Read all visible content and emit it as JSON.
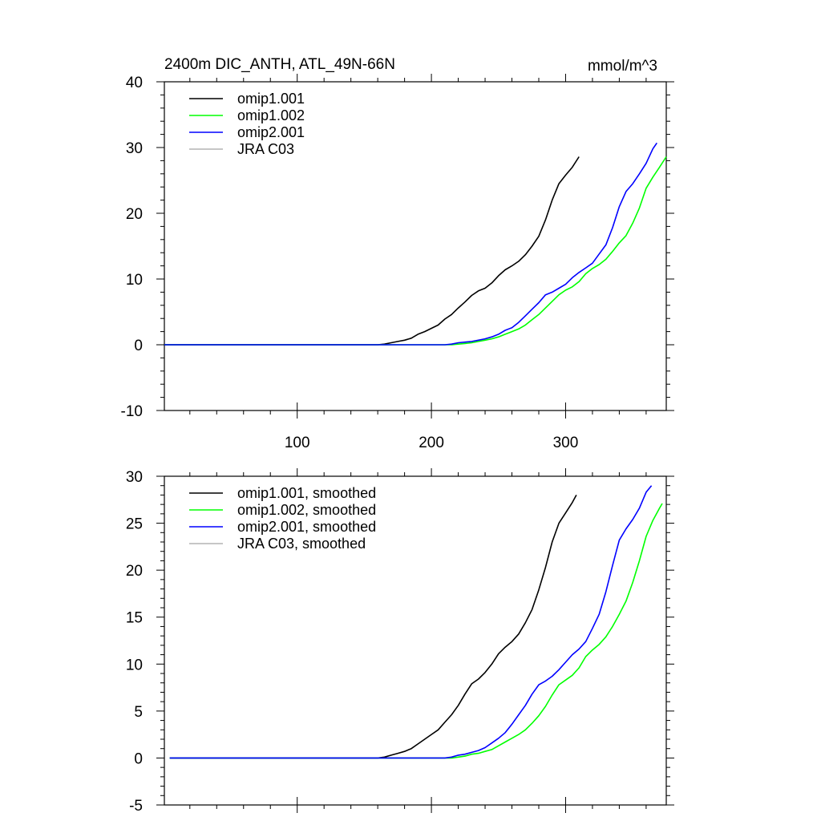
{
  "chart_data": [
    {
      "type": "line",
      "title": "2400m DIC_ANTH, ATL_49N-66N",
      "units": "mmol/m^3",
      "xlim": [
        1,
        375
      ],
      "ylim": [
        -10,
        40
      ],
      "xticks": [
        100,
        200,
        300
      ],
      "xtick_labels": [
        "100",
        "200",
        "300"
      ],
      "yticks": [
        -10,
        0,
        10,
        20,
        30,
        40
      ],
      "ytick_labels": [
        "-10",
        "0",
        "10",
        "20",
        "30",
        "40"
      ],
      "legend_position": "top-left",
      "grid": false,
      "series": [
        {
          "name": "omip1.001",
          "color": "#000000",
          "x": [
            1,
            160,
            165,
            170,
            175,
            180,
            185,
            190,
            195,
            200,
            205,
            210,
            215,
            220,
            225,
            230,
            235,
            240,
            245,
            250,
            255,
            260,
            265,
            270,
            275,
            280,
            285,
            290,
            295,
            300,
            305,
            310
          ],
          "y": [
            0,
            0,
            0.1,
            0.3,
            0.5,
            0.7,
            1.0,
            1.6,
            2.0,
            2.5,
            3.0,
            3.9,
            4.6,
            5.6,
            6.5,
            7.5,
            8.2,
            8.6,
            9.4,
            10.5,
            11.4,
            12.0,
            12.7,
            13.7,
            15.0,
            16.5,
            19.0,
            22.0,
            24.5,
            25.8,
            27.0,
            28.6
          ]
        },
        {
          "name": "omip1.002",
          "color": "#00ff00",
          "x": [
            1,
            210,
            215,
            220,
            225,
            230,
            235,
            240,
            245,
            250,
            255,
            260,
            265,
            270,
            275,
            280,
            285,
            290,
            295,
            300,
            305,
            310,
            315,
            320,
            325,
            330,
            335,
            340,
            345,
            350,
            355,
            360,
            365,
            370,
            375
          ],
          "y": [
            0,
            0,
            0,
            0.1,
            0.2,
            0.3,
            0.5,
            0.7,
            0.9,
            1.2,
            1.6,
            2.0,
            2.4,
            3.0,
            3.8,
            4.6,
            5.6,
            6.6,
            7.6,
            8.3,
            8.8,
            9.6,
            10.8,
            11.6,
            12.2,
            13.0,
            14.2,
            15.5,
            16.6,
            18.5,
            20.8,
            23.8,
            25.5,
            27.0,
            28.6
          ]
        },
        {
          "name": "omip2.001",
          "color": "#0000ff",
          "x": [
            1,
            210,
            215,
            220,
            225,
            230,
            235,
            240,
            245,
            250,
            255,
            260,
            265,
            270,
            275,
            280,
            285,
            290,
            295,
            300,
            305,
            310,
            315,
            320,
            325,
            330,
            335,
            340,
            345,
            350,
            355,
            360,
            365,
            368
          ],
          "y": [
            0,
            0,
            0.1,
            0.3,
            0.4,
            0.5,
            0.7,
            0.9,
            1.2,
            1.6,
            2.2,
            2.6,
            3.4,
            4.4,
            5.4,
            6.4,
            7.6,
            8.0,
            8.6,
            9.2,
            10.2,
            11.0,
            11.7,
            12.4,
            13.8,
            15.2,
            17.8,
            21.0,
            23.3,
            24.5,
            26.0,
            27.6,
            29.8,
            30.7
          ]
        },
        {
          "name": "JRA C03",
          "color": "#b4b4b4",
          "x": [],
          "y": []
        }
      ]
    },
    {
      "type": "line",
      "title": "",
      "xlim": [
        1,
        375
      ],
      "ylim": [
        -5,
        30
      ],
      "xticks": [
        100,
        200,
        300
      ],
      "xtick_labels": [],
      "yticks": [
        -5,
        0,
        5,
        10,
        15,
        20,
        25,
        30
      ],
      "ytick_labels": [
        "-5",
        "0",
        "5",
        "10",
        "15",
        "20",
        "25",
        "30"
      ],
      "legend_position": "top-left",
      "grid": false,
      "series": [
        {
          "name": "omip1.001, smoothed",
          "color": "#000000",
          "x": [
            5,
            160,
            165,
            170,
            175,
            180,
            185,
            190,
            195,
            200,
            205,
            210,
            215,
            220,
            225,
            230,
            235,
            240,
            245,
            250,
            255,
            260,
            265,
            270,
            275,
            280,
            285,
            290,
            295,
            300,
            305,
            308
          ],
          "y": [
            0,
            0,
            0.1,
            0.3,
            0.5,
            0.7,
            1.0,
            1.5,
            2.0,
            2.5,
            3.0,
            3.8,
            4.6,
            5.6,
            6.8,
            7.9,
            8.4,
            9.1,
            10.0,
            11.1,
            11.8,
            12.4,
            13.2,
            14.4,
            15.8,
            17.9,
            20.3,
            23.0,
            25.0,
            26.1,
            27.2,
            28.0
          ]
        },
        {
          "name": "omip1.002, smoothed",
          "color": "#00ff00",
          "x": [
            5,
            210,
            215,
            220,
            225,
            230,
            235,
            240,
            245,
            250,
            255,
            260,
            265,
            270,
            275,
            280,
            285,
            290,
            295,
            300,
            305,
            310,
            315,
            320,
            325,
            330,
            335,
            340,
            345,
            350,
            355,
            360,
            365,
            370,
            372
          ],
          "y": [
            0,
            0,
            0,
            0.1,
            0.2,
            0.4,
            0.5,
            0.7,
            0.9,
            1.3,
            1.7,
            2.1,
            2.5,
            3.0,
            3.7,
            4.5,
            5.5,
            6.7,
            7.8,
            8.3,
            8.8,
            9.6,
            10.8,
            11.5,
            12.1,
            12.9,
            14.0,
            15.3,
            16.7,
            18.7,
            21.0,
            23.6,
            25.3,
            26.6,
            27.1
          ]
        },
        {
          "name": "omip2.001, smoothed",
          "color": "#0000ff",
          "x": [
            5,
            210,
            215,
            220,
            225,
            230,
            235,
            240,
            245,
            250,
            255,
            260,
            265,
            270,
            275,
            280,
            285,
            290,
            295,
            300,
            305,
            310,
            315,
            320,
            325,
            330,
            335,
            340,
            345,
            350,
            355,
            360,
            364
          ],
          "y": [
            0,
            0,
            0.1,
            0.3,
            0.4,
            0.6,
            0.8,
            1.1,
            1.6,
            2.1,
            2.7,
            3.6,
            4.6,
            5.6,
            6.8,
            7.8,
            8.2,
            8.7,
            9.4,
            10.2,
            11.0,
            11.6,
            12.4,
            13.8,
            15.3,
            17.7,
            20.5,
            23.2,
            24.4,
            25.4,
            26.6,
            28.3,
            29.0
          ]
        },
        {
          "name": "JRA C03, smoothed",
          "color": "#b4b4b4",
          "x": [],
          "y": []
        }
      ]
    }
  ]
}
